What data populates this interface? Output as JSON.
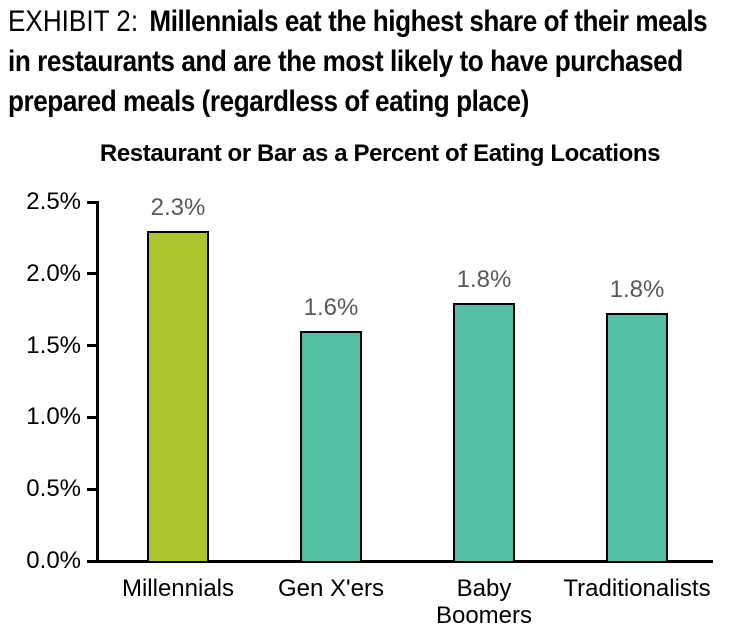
{
  "header": {
    "exhibit_label": "EXHIBIT 2:",
    "title_lines": [
      "Millennials eat the highest share of their meals",
      "in restaurants and are the most likely to have purchased",
      "prepared meals (regardless of eating place)"
    ]
  },
  "chart_data": {
    "type": "bar",
    "title": "Restaurant or Bar as a Percent of Eating Locations",
    "categories": [
      "Millennials",
      "Gen X'ers",
      "Baby\nBoomers",
      "Traditionalists"
    ],
    "values": [
      2.3,
      1.6,
      1.8,
      1.8
    ],
    "plotted_values": [
      2.3,
      1.6,
      1.8,
      1.73
    ],
    "value_labels": [
      "2.3%",
      "1.6%",
      "1.8%",
      "1.8%"
    ],
    "bar_colors": [
      "#aec42f",
      "#55bfa6",
      "#55bfa6",
      "#55bfa6"
    ],
    "y_ticks": [
      {
        "value": 2.5,
        "label": "2.5%"
      },
      {
        "value": 2.0,
        "label": "2.0%"
      },
      {
        "value": 1.5,
        "label": "1.5%"
      },
      {
        "value": 1.0,
        "label": "1.0%"
      },
      {
        "value": 0.5,
        "label": "0.5%"
      },
      {
        "value": 0.0,
        "label": "0.0%"
      }
    ],
    "ylim": [
      0,
      2.5
    ],
    "xlabel": "",
    "ylabel": "",
    "grid": false,
    "legend": "none",
    "axis_color": "#000000",
    "bar_border_color": "#000000",
    "value_label_color": "#595959",
    "tick_label_color": "#000000"
  }
}
